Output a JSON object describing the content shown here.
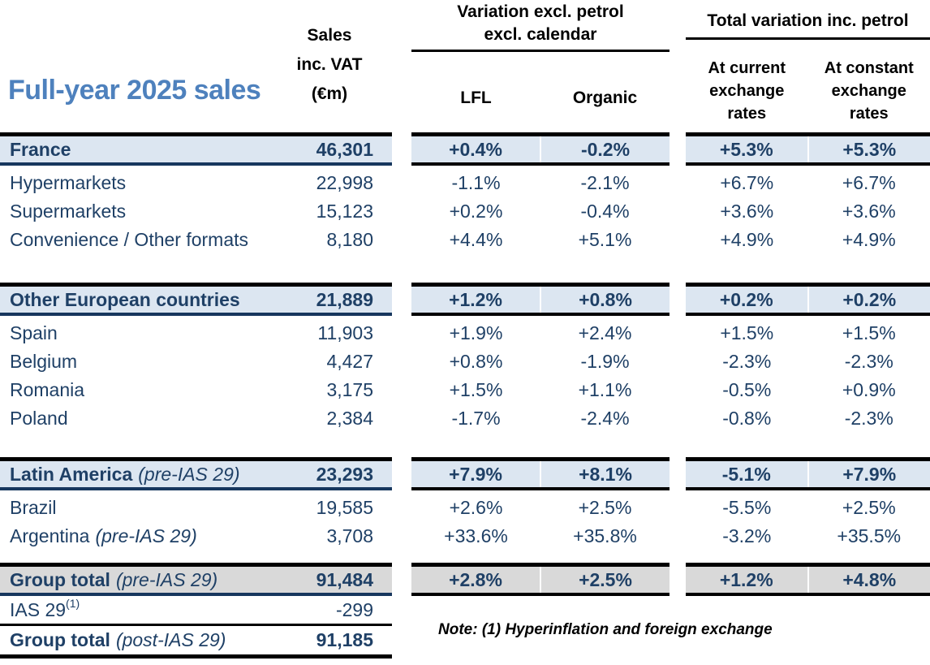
{
  "title": "Full-year 2025 sales",
  "colors": {
    "accent_blue": "#4E81BD",
    "navy_text": "#1F4066",
    "highlight_blue_row": "#DCE6F1",
    "highlight_gray_row": "#D9D9D9"
  },
  "headers": {
    "sales": "Sales\ninc. VAT\n(€m)",
    "variation_group": "Variation excl. petrol\nexcl. calendar",
    "lfl": "LFL",
    "organic": "Organic",
    "total_group": "Total variation inc. petrol",
    "current": "At current\nexchange\nrates",
    "constant": "At constant\nexchange\nrates"
  },
  "blocks": [
    {
      "total": {
        "label": "France",
        "sales": "46,301",
        "lfl": "+0.4%",
        "organic": "-0.2%",
        "current": "+5.3%",
        "constant": "+5.3%"
      },
      "rows": [
        {
          "label": "Hypermarkets",
          "sales": "22,998",
          "lfl": "-1.1%",
          "organic": "-2.1%",
          "current": "+6.7%",
          "constant": "+6.7%"
        },
        {
          "label": "Supermarkets",
          "sales": "15,123",
          "lfl": "+0.2%",
          "organic": "-0.4%",
          "current": "+3.6%",
          "constant": "+3.6%"
        },
        {
          "label": "Convenience / Other formats",
          "sales": "8,180",
          "lfl": "+4.4%",
          "organic": "+5.1%",
          "current": "+4.9%",
          "constant": "+4.9%"
        }
      ]
    },
    {
      "total": {
        "label": "Other European countries",
        "sales": "21,889",
        "lfl": "+1.2%",
        "organic": "+0.8%",
        "current": "+0.2%",
        "constant": "+0.2%"
      },
      "rows": [
        {
          "label": "Spain",
          "sales": "11,903",
          "lfl": "+1.9%",
          "organic": "+2.4%",
          "current": "+1.5%",
          "constant": "+1.5%"
        },
        {
          "label": "Belgium",
          "sales": "4,427",
          "lfl": "+0.8%",
          "organic": "-1.9%",
          "current": "-2.3%",
          "constant": "-2.3%"
        },
        {
          "label": "Romania",
          "sales": "3,175",
          "lfl": "+1.5%",
          "organic": "+1.1%",
          "current": "-0.5%",
          "constant": "+0.9%"
        },
        {
          "label": "Poland",
          "sales": "2,384",
          "lfl": "-1.7%",
          "organic": "-2.4%",
          "current": "-0.8%",
          "constant": "-2.3%"
        }
      ]
    },
    {
      "total": {
        "label": "Latin America",
        "label_italic": "(pre-IAS 29)",
        "sales": "23,293",
        "lfl": "+7.9%",
        "organic": "+8.1%",
        "current": "-5.1%",
        "constant": "+7.9%"
      },
      "rows": [
        {
          "label": "Brazil",
          "sales": "19,585",
          "lfl": "+2.6%",
          "organic": "+2.5%",
          "current": "-5.5%",
          "constant": "+2.5%"
        },
        {
          "label": "Argentina",
          "label_italic": "(pre-IAS 29)",
          "sales": "3,708",
          "lfl": "+33.6%",
          "organic": "+35.8%",
          "current": "-3.2%",
          "constant": "+35.5%"
        }
      ]
    }
  ],
  "footer": {
    "group_pre": {
      "label": "Group total",
      "label_italic": "(pre-IAS 29)",
      "sales": "91,484",
      "lfl": "+2.8%",
      "organic": "+2.5%",
      "current": "+1.2%",
      "constant": "+4.8%"
    },
    "ias": {
      "label": "IAS 29",
      "superscript": "(1)",
      "sales": "-299"
    },
    "group_post": {
      "label": "Group total",
      "label_italic": "(post-IAS 29)",
      "sales": "91,185"
    },
    "note": "Note: (1) Hyperinflation and foreign exchange"
  }
}
